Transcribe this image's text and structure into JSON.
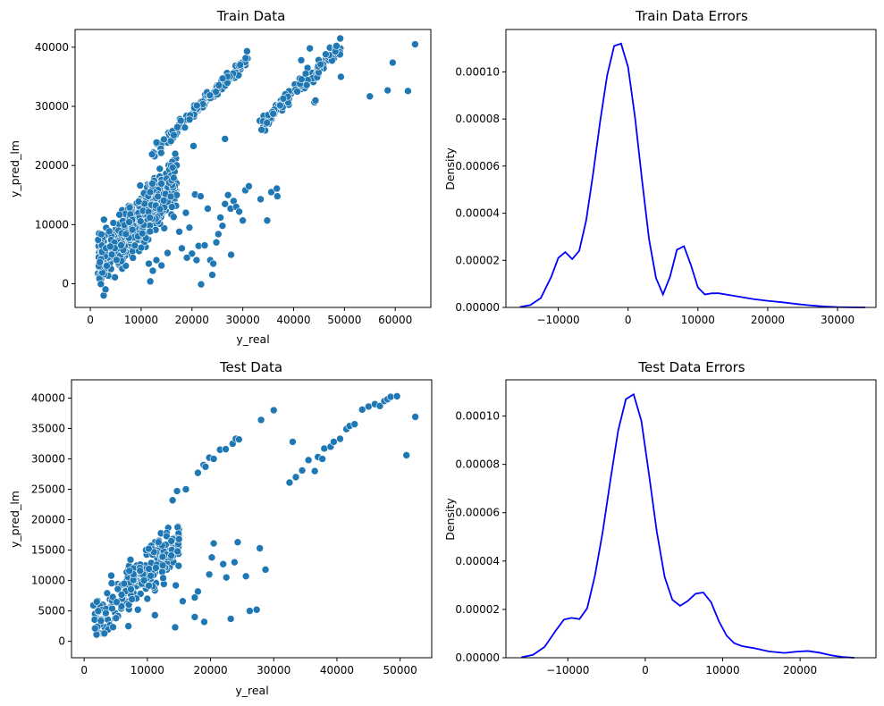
{
  "chart_data": [
    {
      "id": "train-scatter",
      "type": "scatter",
      "title": "Train Data",
      "xlabel": "y_real",
      "ylabel": "y_pred_lm",
      "xlim": [
        -3000,
        67000
      ],
      "ylim": [
        -4000,
        43000
      ],
      "xticks": [
        0,
        10000,
        20000,
        30000,
        40000,
        50000,
        60000
      ],
      "yticks": [
        0,
        10000,
        20000,
        30000,
        40000
      ],
      "color": "#1f77b4",
      "clusters": [
        {
          "x": [
            1200,
            17000
          ],
          "slope": 0.92,
          "intercept": 1800,
          "spread": 2300,
          "n": 520,
          "seed": 11
        },
        {
          "x": [
            12000,
            31000
          ],
          "slope": 0.86,
          "intercept": 11500,
          "spread": 600,
          "n": 140,
          "seed": 23
        },
        {
          "x": [
            33000,
            49500
          ],
          "slope": 0.86,
          "intercept": -2200,
          "spread": 700,
          "n": 110,
          "seed": 37
        }
      ],
      "points": [
        [
          11800,
          400
        ],
        [
          13000,
          4000
        ],
        [
          12300,
          2200
        ],
        [
          14000,
          3100
        ],
        [
          15200,
          5200
        ],
        [
          17500,
          8800
        ],
        [
          18000,
          6000
        ],
        [
          18800,
          12000
        ],
        [
          19500,
          9500
        ],
        [
          20000,
          5100
        ],
        [
          20600,
          15100
        ],
        [
          20900,
          4000
        ],
        [
          21300,
          6400
        ],
        [
          21700,
          14800
        ],
        [
          21800,
          -100
        ],
        [
          22500,
          6500
        ],
        [
          23100,
          12700
        ],
        [
          23600,
          4000
        ],
        [
          24200,
          3400
        ],
        [
          24800,
          7000
        ],
        [
          25200,
          8400
        ],
        [
          25600,
          11200
        ],
        [
          26000,
          9800
        ],
        [
          26500,
          13500
        ],
        [
          27100,
          15000
        ],
        [
          27600,
          12700
        ],
        [
          28200,
          14000
        ],
        [
          28700,
          13000
        ],
        [
          29300,
          12200
        ],
        [
          30000,
          10700
        ],
        [
          30500,
          15800
        ],
        [
          31200,
          16500
        ],
        [
          33500,
          14300
        ],
        [
          34800,
          10700
        ],
        [
          35600,
          15500
        ],
        [
          36700,
          16100
        ],
        [
          36800,
          14800
        ],
        [
          26500,
          24500
        ],
        [
          20300,
          23300
        ],
        [
          24000,
          1500
        ],
        [
          27700,
          4900
        ],
        [
          44100,
          30700
        ],
        [
          44300,
          31000
        ],
        [
          49300,
          35000
        ],
        [
          55000,
          31700
        ],
        [
          58500,
          32700
        ],
        [
          59500,
          37400
        ],
        [
          62500,
          32600
        ],
        [
          63900,
          40500
        ],
        [
          41500,
          37800
        ],
        [
          43200,
          39800
        ],
        [
          11500,
          3400
        ],
        [
          9500,
          13900
        ],
        [
          16400,
          11300
        ],
        [
          19000,
          4400
        ]
      ]
    },
    {
      "id": "train-errors",
      "type": "line",
      "title": "Train Data Errors",
      "xlabel": "",
      "ylabel": "Density",
      "xlim": [
        -17500,
        35500
      ],
      "ylim": [
        0,
        0.000118
      ],
      "xticks": [
        -10000,
        0,
        10000,
        20000,
        30000
      ],
      "xtick_labels": [
        "−10000",
        "0",
        "10000",
        "20000",
        "30000"
      ],
      "yticks": [
        0,
        2e-05,
        4e-05,
        6e-05,
        8e-05,
        0.0001
      ],
      "ytick_labels": [
        "0.00000",
        "0.00002",
        "0.00004",
        "0.00006",
        "0.00008",
        "0.00010"
      ],
      "color": "#0000ff",
      "x": [
        -15500,
        -14000,
        -12500,
        -11000,
        -10000,
        -9000,
        -8000,
        -7000,
        -6000,
        -5000,
        -4000,
        -3000,
        -2000,
        -1000,
        0,
        1000,
        2000,
        3000,
        4000,
        5000,
        6000,
        7000,
        8000,
        9000,
        10000,
        11000,
        12000,
        13000,
        14000,
        16000,
        18000,
        20000,
        22000,
        24000,
        26000,
        28000,
        30000,
        32000,
        34000
      ],
      "y": [
        2e-07,
        1e-06,
        4e-06,
        1.3e-05,
        2.1e-05,
        2.35e-05,
        2.05e-05,
        2.4e-05,
        3.7e-05,
        5.7e-05,
        7.9e-05,
        9.85e-05,
        0.000111,
        0.000112,
        0.000102,
        8.05e-05,
        5.4e-05,
        2.9e-05,
        1.25e-05,
        5.5e-06,
        1.3e-05,
        2.45e-05,
        2.6e-05,
        1.8e-05,
        8.5e-06,
        5.5e-06,
        6e-06,
        6e-06,
        5.5e-06,
        4.5e-06,
        3.5e-06,
        2.8e-06,
        2.2e-06,
        1.5e-06,
        9e-07,
        4e-07,
        1.5e-07,
        5e-08,
        0.0
      ]
    },
    {
      "id": "test-scatter",
      "type": "scatter",
      "title": "Test Data",
      "xlabel": "y_real",
      "ylabel": "y_pred_lm",
      "xlim": [
        -2000,
        55000
      ],
      "ylim": [
        -2700,
        43000
      ],
      "xticks": [
        0,
        10000,
        20000,
        30000,
        40000,
        50000
      ],
      "yticks": [
        0,
        5000,
        10000,
        15000,
        20000,
        25000,
        30000,
        35000,
        40000
      ],
      "color": "#1f77b4",
      "clusters": [
        {
          "x": [
            1300,
            15000
          ],
          "slope": 0.98,
          "intercept": 1700,
          "spread": 1800,
          "n": 230,
          "seed": 51
        }
      ],
      "points": [
        [
          11200,
          4300
        ],
        [
          14400,
          2300
        ],
        [
          14500,
          9200
        ],
        [
          15600,
          6600
        ],
        [
          17500,
          4000
        ],
        [
          17500,
          7200
        ],
        [
          18000,
          8200
        ],
        [
          19000,
          3200
        ],
        [
          19800,
          11000
        ],
        [
          20200,
          13800
        ],
        [
          20500,
          16100
        ],
        [
          22000,
          12700
        ],
        [
          22500,
          10500
        ],
        [
          23200,
          3700
        ],
        [
          23800,
          13000
        ],
        [
          24300,
          16300
        ],
        [
          25600,
          10700
        ],
        [
          26200,
          5000
        ],
        [
          27300,
          5200
        ],
        [
          27800,
          15300
        ],
        [
          28700,
          11800
        ],
        [
          14000,
          23200
        ],
        [
          14700,
          24700
        ],
        [
          16100,
          25000
        ],
        [
          18000,
          27700
        ],
        [
          18900,
          29000
        ],
        [
          19200,
          28700
        ],
        [
          19800,
          30200
        ],
        [
          20500,
          30000
        ],
        [
          21500,
          31500
        ],
        [
          22400,
          31600
        ],
        [
          23500,
          32500
        ],
        [
          24000,
          33300
        ],
        [
          24500,
          33200
        ],
        [
          28000,
          36400
        ],
        [
          30000,
          38000
        ],
        [
          32500,
          26100
        ],
        [
          33000,
          32800
        ],
        [
          33500,
          27000
        ],
        [
          34500,
          28100
        ],
        [
          35500,
          29800
        ],
        [
          36500,
          28000
        ],
        [
          37000,
          30300
        ],
        [
          37700,
          30000
        ],
        [
          38000,
          31700
        ],
        [
          39000,
          32000
        ],
        [
          39500,
          32800
        ],
        [
          40500,
          33300
        ],
        [
          41500,
          34900
        ],
        [
          42000,
          35400
        ],
        [
          42800,
          35700
        ],
        [
          44000,
          38100
        ],
        [
          45000,
          38600
        ],
        [
          46000,
          39000
        ],
        [
          46800,
          38700
        ],
        [
          47500,
          39500
        ],
        [
          48000,
          39800
        ],
        [
          48500,
          40200
        ],
        [
          49500,
          40300
        ],
        [
          51000,
          30600
        ],
        [
          52400,
          36900
        ],
        [
          2000,
          6500
        ],
        [
          3200,
          1300
        ],
        [
          4300,
          10800
        ],
        [
          7000,
          2500
        ],
        [
          8500,
          5200
        ],
        [
          10000,
          7000
        ],
        [
          12500,
          10400
        ],
        [
          15000,
          16800
        ],
        [
          13800,
          16500
        ]
      ]
    },
    {
      "id": "test-errors",
      "type": "line",
      "title": "Test Data Errors",
      "xlabel": "",
      "ylabel": "Density",
      "xlim": [
        -18000,
        29800
      ],
      "ylim": [
        0,
        0.000115
      ],
      "xticks": [
        -10000,
        0,
        10000,
        20000
      ],
      "xtick_labels": [
        "−10000",
        "0",
        "10000",
        "20000"
      ],
      "yticks": [
        0,
        2e-05,
        4e-05,
        6e-05,
        8e-05,
        0.0001
      ],
      "ytick_labels": [
        "0.00000",
        "0.00002",
        "0.00004",
        "0.00006",
        "0.00008",
        "0.00010"
      ],
      "color": "#0000ff",
      "x": [
        -16000,
        -14500,
        -13000,
        -11500,
        -10500,
        -9500,
        -8500,
        -7500,
        -6500,
        -5500,
        -4500,
        -3500,
        -2500,
        -1500,
        -500,
        500,
        1500,
        2500,
        3500,
        4500,
        5500,
        6500,
        7500,
        8500,
        9500,
        10500,
        11500,
        12500,
        14000,
        16000,
        18000,
        19500,
        21000,
        22500,
        24000,
        25500,
        27000
      ],
      "y": [
        2e-07,
        1.2e-06,
        4.5e-06,
        1.15e-05,
        1.58e-05,
        1.65e-05,
        1.6e-05,
        2.05e-05,
        3.4e-05,
        5.2e-05,
        7.35e-05,
        9.4e-05,
        0.000107,
        0.000109,
        9.8e-05,
        7.55e-05,
        5.2e-05,
        3.35e-05,
        2.4e-05,
        2.15e-05,
        2.35e-05,
        2.65e-05,
        2.7e-05,
        2.3e-05,
        1.52e-05,
        9.2e-06,
        6e-06,
        4.8e-06,
        4e-06,
        2.6e-06,
        2e-06,
        2.5e-06,
        2.8e-06,
        2.1e-06,
        1e-06,
        3e-07,
        0.0
      ]
    }
  ]
}
